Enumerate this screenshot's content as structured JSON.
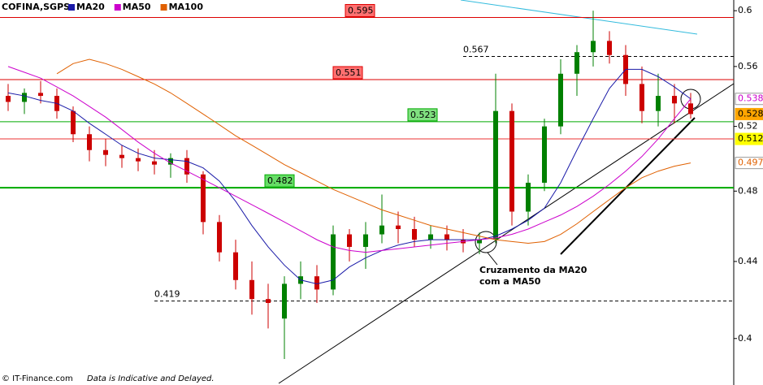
{
  "chart_data": {
    "type": "candlestick",
    "title": "COFINA,SGPS",
    "log_scale": true,
    "ylim": [
      0.383,
      0.608
    ],
    "yticks": [
      0.4,
      0.44,
      0.48,
      0.52,
      0.56,
      0.6
    ],
    "up_color": "#008000",
    "down_color": "#cc0000",
    "open": [
      0.54,
      0.536,
      0.542,
      0.54,
      0.53,
      0.515,
      0.505,
      0.502,
      0.5,
      0.498,
      0.496,
      0.5,
      0.49,
      0.462,
      0.445,
      0.43,
      0.42,
      0.41,
      0.428,
      0.432,
      0.425,
      0.455,
      0.448,
      0.455,
      0.46,
      0.458,
      0.452,
      0.455,
      0.452,
      0.45,
      0.452,
      0.53,
      0.468,
      0.485,
      0.52,
      0.555,
      0.57,
      0.578,
      0.568,
      0.548,
      0.53,
      0.54,
      0.535
    ],
    "high": [
      0.548,
      0.545,
      0.55,
      0.545,
      0.533,
      0.52,
      0.512,
      0.508,
      0.506,
      0.505,
      0.503,
      0.505,
      0.492,
      0.466,
      0.452,
      0.44,
      0.428,
      0.432,
      0.44,
      0.438,
      0.46,
      0.458,
      0.462,
      0.478,
      0.468,
      0.465,
      0.46,
      0.46,
      0.458,
      0.456,
      0.555,
      0.535,
      0.49,
      0.525,
      0.565,
      0.575,
      0.6,
      0.585,
      0.575,
      0.56,
      0.555,
      0.548,
      0.542
    ],
    "low": [
      0.53,
      0.528,
      0.535,
      0.525,
      0.51,
      0.498,
      0.495,
      0.494,
      0.492,
      0.49,
      0.488,
      0.485,
      0.455,
      0.44,
      0.425,
      0.412,
      0.405,
      0.39,
      0.42,
      0.418,
      0.422,
      0.44,
      0.436,
      0.45,
      0.45,
      0.448,
      0.447,
      0.446,
      0.445,
      0.444,
      0.45,
      0.46,
      0.46,
      0.48,
      0.515,
      0.54,
      0.56,
      0.562,
      0.54,
      0.522,
      0.52,
      0.522,
      0.525
    ],
    "close": [
      0.536,
      0.542,
      0.54,
      0.53,
      0.515,
      0.505,
      0.502,
      0.5,
      0.498,
      0.496,
      0.5,
      0.49,
      0.462,
      0.445,
      0.43,
      0.42,
      0.418,
      0.428,
      0.432,
      0.425,
      0.455,
      0.448,
      0.455,
      0.46,
      0.458,
      0.452,
      0.455,
      0.452,
      0.45,
      0.452,
      0.53,
      0.468,
      0.485,
      0.52,
      0.555,
      0.57,
      0.578,
      0.568,
      0.548,
      0.53,
      0.54,
      0.535,
      0.528
    ],
    "series": [
      {
        "name": "MA20",
        "color": "#1a1aa8",
        "values": [
          0.542,
          0.54,
          0.537,
          0.535,
          0.53,
          0.522,
          0.515,
          0.508,
          0.503,
          0.5,
          0.499,
          0.498,
          0.494,
          0.486,
          0.474,
          0.46,
          0.448,
          0.438,
          0.43,
          0.428,
          0.43,
          0.437,
          0.442,
          0.446,
          0.449,
          0.451,
          0.452,
          0.452,
          0.452,
          0.452,
          0.454,
          0.458,
          0.463,
          0.47,
          0.485,
          0.505,
          0.525,
          0.545,
          0.558,
          0.558,
          0.553,
          0.546,
          0.538
        ]
      },
      {
        "name": "MA50",
        "color": "#cc00cc",
        "values": [
          0.56,
          0.556,
          0.552,
          0.546,
          0.54,
          0.533,
          0.526,
          0.518,
          0.51,
          0.503,
          0.497,
          0.492,
          0.487,
          0.482,
          0.477,
          0.472,
          0.467,
          0.462,
          0.457,
          0.452,
          0.448,
          0.446,
          0.445,
          0.446,
          0.447,
          0.448,
          0.449,
          0.45,
          0.451,
          0.452,
          0.453,
          0.455,
          0.458,
          0.462,
          0.466,
          0.471,
          0.477,
          0.484,
          0.492,
          0.501,
          0.512,
          0.525,
          0.538
        ]
      },
      {
        "name": "MA100",
        "color": "#e06000",
        "values": [
          null,
          null,
          null,
          0.555,
          0.562,
          0.565,
          0.562,
          0.558,
          0.553,
          0.548,
          0.542,
          0.535,
          0.528,
          0.521,
          0.514,
          0.508,
          0.502,
          0.496,
          0.491,
          0.486,
          0.481,
          0.477,
          0.473,
          0.469,
          0.466,
          0.463,
          0.46,
          0.458,
          0.456,
          0.454,
          0.452,
          0.451,
          0.45,
          0.451,
          0.455,
          0.461,
          0.468,
          0.475,
          0.482,
          0.488,
          0.492,
          0.495,
          0.497
        ]
      }
    ],
    "levels": [
      {
        "value": 0.595,
        "color": "#dd0000",
        "style": "solid",
        "tag": "box",
        "tag_fill": "#ff7070"
      },
      {
        "value": 0.567,
        "color": "#000000",
        "style": "dashed",
        "tag": "text"
      },
      {
        "value": 0.551,
        "color": "#dd0000",
        "style": "solid",
        "tag": "box",
        "tag_fill": "#ff7070"
      },
      {
        "value": 0.523,
        "color": "#00aa00",
        "style": "solid",
        "tag": "box",
        "tag_fill": "#80e080"
      },
      {
        "value": 0.512,
        "color": "#ee3333",
        "style": "solid",
        "tag": "none"
      },
      {
        "value": 0.482,
        "color": "#00aa00",
        "style": "solid",
        "tag": "box",
        "tag_fill": "#66dd66"
      },
      {
        "value": 0.419,
        "color": "#000000",
        "style": "dashed",
        "tag": "text"
      }
    ],
    "right_markers": [
      {
        "value": 0.538,
        "fill": "#ffffff",
        "color": "#cc00cc"
      },
      {
        "value": 0.528,
        "fill": "#ffa500",
        "color": "#000000"
      },
      {
        "value": 0.512,
        "fill": "#ffff00",
        "color": "#000000"
      },
      {
        "value": 0.497,
        "fill": "#ffffff",
        "color": "#e06000"
      }
    ],
    "annotation": [
      "Cruzamento da MA20",
      "com a MA50"
    ],
    "footer": {
      "source": "© IT-Finance.com",
      "note": "Data is Indicative and Delayed."
    }
  }
}
